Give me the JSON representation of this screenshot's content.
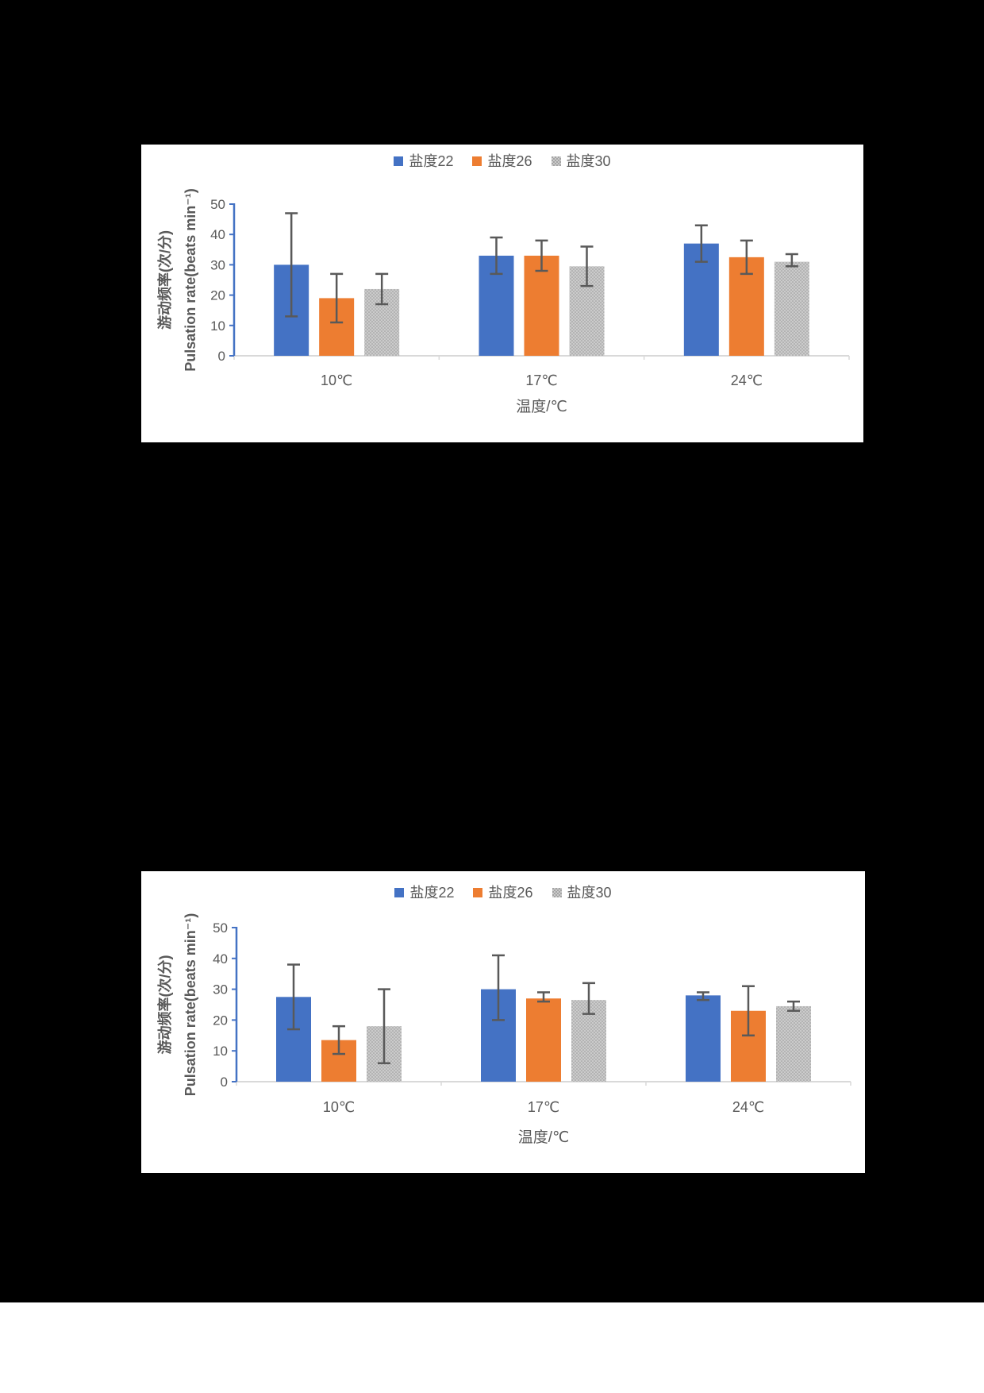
{
  "page": {
    "background_color": "#000000",
    "panel_color": "#FFFFFF"
  },
  "chart_data": [
    {
      "type": "bar",
      "title": "",
      "categories": [
        "10℃",
        "17℃",
        "24℃"
      ],
      "xlabel": "温度/℃",
      "ylabel_zh": "游动频率(次/分)",
      "ylabel_en": "Pulsation rate(beats min⁻¹)",
      "ylim": [
        0,
        50
      ],
      "ytick_step": 10,
      "grid": false,
      "legend_position": "top-center",
      "axis_color": "#4472C4",
      "baseline_color": "#D9D9D9",
      "error_bar_color": "#595959",
      "text_color": "#595959",
      "series": [
        {
          "name": "盐度22",
          "color": "#4472C4",
          "fill": "solid",
          "values": [
            30,
            33,
            37
          ],
          "error_low": [
            13,
            27,
            31
          ],
          "error_high": [
            47,
            39,
            43
          ]
        },
        {
          "name": "盐度26",
          "color": "#ED7D31",
          "fill": "solid",
          "values": [
            19,
            33,
            32.5
          ],
          "error_low": [
            11,
            28,
            27
          ],
          "error_high": [
            27,
            38,
            38
          ]
        },
        {
          "name": "盐度30",
          "color": "#A6A6A6",
          "fill": "stipple-pattern",
          "values": [
            22,
            29.5,
            31
          ],
          "error_low": [
            17,
            23,
            29.5
          ],
          "error_high": [
            27,
            36,
            33.5
          ]
        }
      ]
    },
    {
      "type": "bar",
      "title": "",
      "categories": [
        "10℃",
        "17℃",
        "24℃"
      ],
      "xlabel": "温度/℃",
      "ylabel_zh": "游动频率(次/分)",
      "ylabel_en": "Pulsation rate(beats min⁻¹)",
      "ylim": [
        0,
        50
      ],
      "ytick_step": 10,
      "grid": false,
      "legend_position": "top-center",
      "axis_color": "#4472C4",
      "baseline_color": "#D9D9D9",
      "error_bar_color": "#595959",
      "text_color": "#595959",
      "series": [
        {
          "name": "盐度22",
          "color": "#4472C4",
          "fill": "solid",
          "values": [
            27.5,
            30,
            28
          ],
          "error_low": [
            17,
            20,
            26.5
          ],
          "error_high": [
            38,
            41,
            29
          ]
        },
        {
          "name": "盐度26",
          "color": "#ED7D31",
          "fill": "solid",
          "values": [
            13.5,
            27,
            23
          ],
          "error_low": [
            9,
            26,
            15
          ],
          "error_high": [
            18,
            29,
            31
          ]
        },
        {
          "name": "盐度30",
          "color": "#A6A6A6",
          "fill": "stipple-pattern",
          "values": [
            18,
            26.5,
            24.5
          ],
          "error_low": [
            6,
            22,
            23
          ],
          "error_high": [
            30,
            32,
            26
          ]
        }
      ]
    }
  ]
}
